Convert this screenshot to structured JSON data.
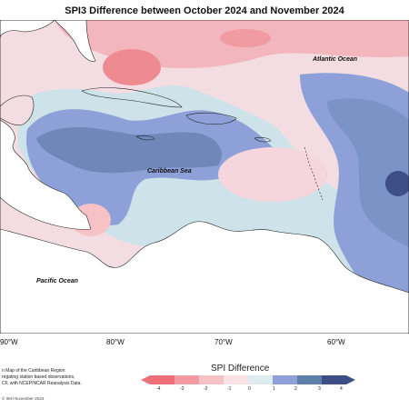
{
  "title": "SPI3 Difference between October 2024 and November 2024",
  "labels": {
    "atlantic": "Atlantic Ocean",
    "caribbean": "Caribbean Sea",
    "pacific": "Pacific Ocean"
  },
  "longitude_ticks": [
    "90°W",
    "80°W",
    "70°W",
    "60°W"
  ],
  "notes": [
    "n Map of the Caribbean Region",
    "regating station based observations,",
    "CF, with NCEP/NCAR Reanalysis Data."
  ],
  "legend": {
    "title": "SPI Difference",
    "ticks": [
      "-4",
      "-3",
      "-2",
      "-1",
      "0",
      "1",
      "2",
      "3",
      "4"
    ],
    "colors": [
      "#ef6f78",
      "#f39aa0",
      "#f7c2c6",
      "#fbe3e5",
      "#ffffff",
      "#dcebf0",
      "#8e9fd9",
      "#5e7fa7",
      "#3d4f86"
    ]
  },
  "credit": "© IMH November-2024"
}
